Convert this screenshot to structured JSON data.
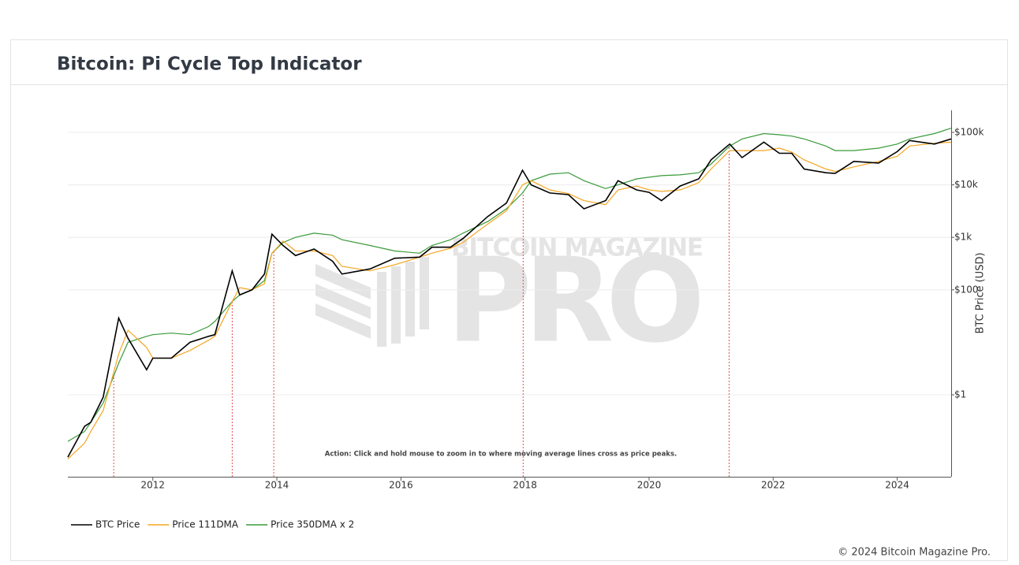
{
  "chart_data": {
    "type": "line",
    "title": "Bitcoin: Pi Cycle Top Indicator",
    "y_label": "BTC Price (USD)",
    "annotation": "Action: Click and hold mouse to zoom in to where moving average lines cross as price peaks.",
    "watermark": [
      "BITCOIN MAGAZINE",
      "PRO"
    ],
    "credit": "© 2024 Bitcoin Magazine Pro.",
    "x": [
      2010.63,
      2010.9,
      2011.0,
      2011.2,
      2011.45,
      2011.6,
      2011.9,
      2012.0,
      2012.3,
      2012.6,
      2012.9,
      2013.0,
      2013.28,
      2013.4,
      2013.6,
      2013.8,
      2013.92,
      2014.1,
      2014.3,
      2014.6,
      2014.9,
      2015.05,
      2015.5,
      2015.9,
      2016.3,
      2016.5,
      2016.8,
      2017.0,
      2017.4,
      2017.7,
      2017.96,
      2018.1,
      2018.4,
      2018.7,
      2018.95,
      2019.3,
      2019.5,
      2019.8,
      2020.0,
      2020.2,
      2020.5,
      2020.8,
      2021.0,
      2021.3,
      2021.5,
      2021.85,
      2022.1,
      2022.3,
      2022.5,
      2022.85,
      2023.0,
      2023.3,
      2023.7,
      2024.0,
      2024.2,
      2024.6,
      2024.87
    ],
    "series": [
      {
        "name": "BTC Price",
        "color": "#000000",
        "values": [
          0.065,
          0.25,
          0.3,
          0.9,
          29,
          12,
          3,
          5,
          5,
          10,
          13,
          14,
          230,
          80,
          100,
          200,
          1150,
          700,
          450,
          600,
          350,
          200,
          250,
          400,
          420,
          650,
          650,
          950,
          2500,
          4500,
          19000,
          10000,
          7000,
          6500,
          3500,
          5000,
          12000,
          8000,
          7200,
          5000,
          9500,
          13000,
          30000,
          60000,
          33000,
          65000,
          40000,
          40000,
          20000,
          17000,
          16500,
          28000,
          26000,
          43000,
          70000,
          60000,
          75000
        ]
      },
      {
        "name": "Price 111DMA",
        "color": "#f5a623",
        "values": [
          0.06,
          0.12,
          0.2,
          0.5,
          6,
          17,
          8,
          5,
          5,
          7,
          11,
          13,
          60,
          110,
          100,
          130,
          500,
          850,
          550,
          550,
          450,
          280,
          230,
          300,
          420,
          500,
          620,
          800,
          1800,
          3200,
          10000,
          12000,
          8000,
          6800,
          5000,
          4200,
          8000,
          9500,
          8000,
          7500,
          8000,
          11000,
          20000,
          45000,
          45000,
          45000,
          50000,
          42000,
          30000,
          20000,
          18000,
          22000,
          28000,
          35000,
          55000,
          62000,
          65000
        ]
      },
      {
        "name": "Price 350DMA x 2",
        "color": "#3a9a3a",
        "values": [
          0.13,
          0.2,
          0.3,
          0.7,
          4,
          10,
          13,
          14,
          15,
          14,
          20,
          25,
          60,
          80,
          100,
          150,
          500,
          800,
          1000,
          1200,
          1100,
          900,
          700,
          550,
          500,
          700,
          900,
          1200,
          2000,
          3500,
          7000,
          12000,
          16000,
          17000,
          12000,
          8500,
          10000,
          13000,
          14000,
          15000,
          15500,
          17000,
          25000,
          55000,
          75000,
          95000,
          90000,
          85000,
          75000,
          55000,
          45000,
          45000,
          50000,
          60000,
          75000,
          95000,
          120000
        ]
      }
    ],
    "crossings": [
      2011.37,
      2013.28,
      2013.95,
      2017.97,
      2021.29
    ],
    "xlim": [
      2010.63,
      2024.87
    ],
    "xticks": [
      2012,
      2014,
      2016,
      2018,
      2020,
      2022,
      2024
    ],
    "ylim": [
      0.0275,
      263000
    ],
    "yticks": [
      {
        "value": 1,
        "label": "$1"
      },
      {
        "value": 100,
        "label": "$100"
      },
      {
        "value": 1000,
        "label": "$1k"
      },
      {
        "value": 10000,
        "label": "$10k"
      },
      {
        "value": 100000,
        "label": "$100k"
      }
    ],
    "log_y": true,
    "grid": true,
    "legend": "bottom-left"
  }
}
